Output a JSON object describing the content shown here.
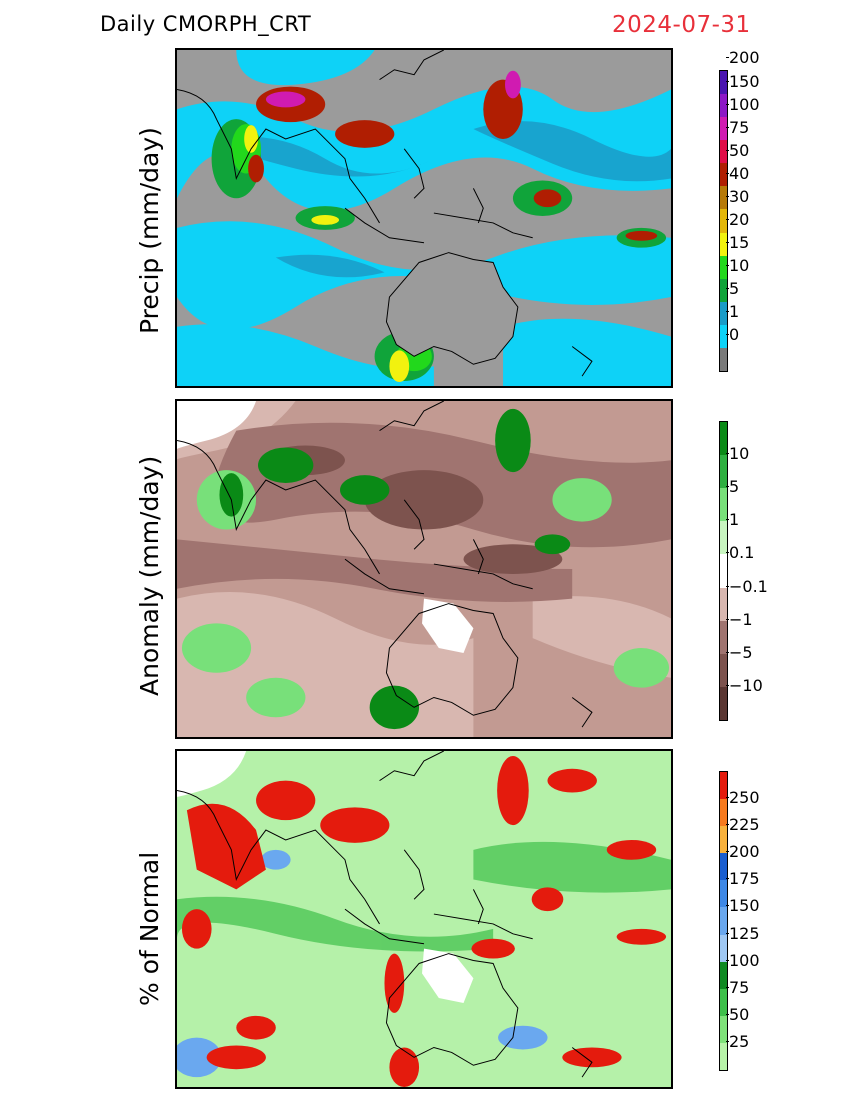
{
  "header": {
    "title": "Daily  CMORPH_CRT",
    "date": "2024-07-31"
  },
  "panels": [
    {
      "id": "precip",
      "ylabel": "Precip  (mm/day)",
      "background": "#9b9b9b",
      "colorbar": {
        "colors": [
          "#7a7a7a",
          "#0ed2f7",
          "#1a9cc8",
          "#10a43a",
          "#22d81c",
          "#f2f20f",
          "#e3b70a",
          "#b77a08",
          "#b01e02",
          "#e00d48",
          "#d01bb1",
          "#8d18c6",
          "#4a14b0"
        ],
        "labels": [
          "0",
          "1",
          "5",
          "10",
          "15",
          "20",
          "30",
          "40",
          "50",
          "75",
          "100",
          "150",
          "200"
        ]
      }
    },
    {
      "id": "anomaly",
      "ylabel": "Anomaly  (mm/day)",
      "background": "#c29a92",
      "colorbar": {
        "colors": [
          "#5a3632",
          "#7d534e",
          "#a07470",
          "#d8b7b0",
          "#ffffff",
          "#c8f5c0",
          "#78e07a",
          "#2eb040",
          "#0a8a16"
        ],
        "labels": [
          "−10",
          "−5",
          "−1",
          "−0.1",
          "0.1",
          "1",
          "5",
          "10"
        ]
      }
    },
    {
      "id": "percent",
      "ylabel": "%  of  Normal",
      "background": "#b5f1a9",
      "colorbar": {
        "colors": [
          "#b7f3a8",
          "#7fe27a",
          "#3ec04a",
          "#0f8a22",
          "#9fc8f4",
          "#6aa8ef",
          "#3e88e6",
          "#1a5ed0",
          "#f9b23c",
          "#f77a1e",
          "#e41b0d"
        ],
        "labels": [
          "25",
          "50",
          "75",
          "100",
          "125",
          "150",
          "175",
          "200",
          "225",
          "250"
        ]
      }
    }
  ],
  "icons": [
    "map-land-outline"
  ]
}
